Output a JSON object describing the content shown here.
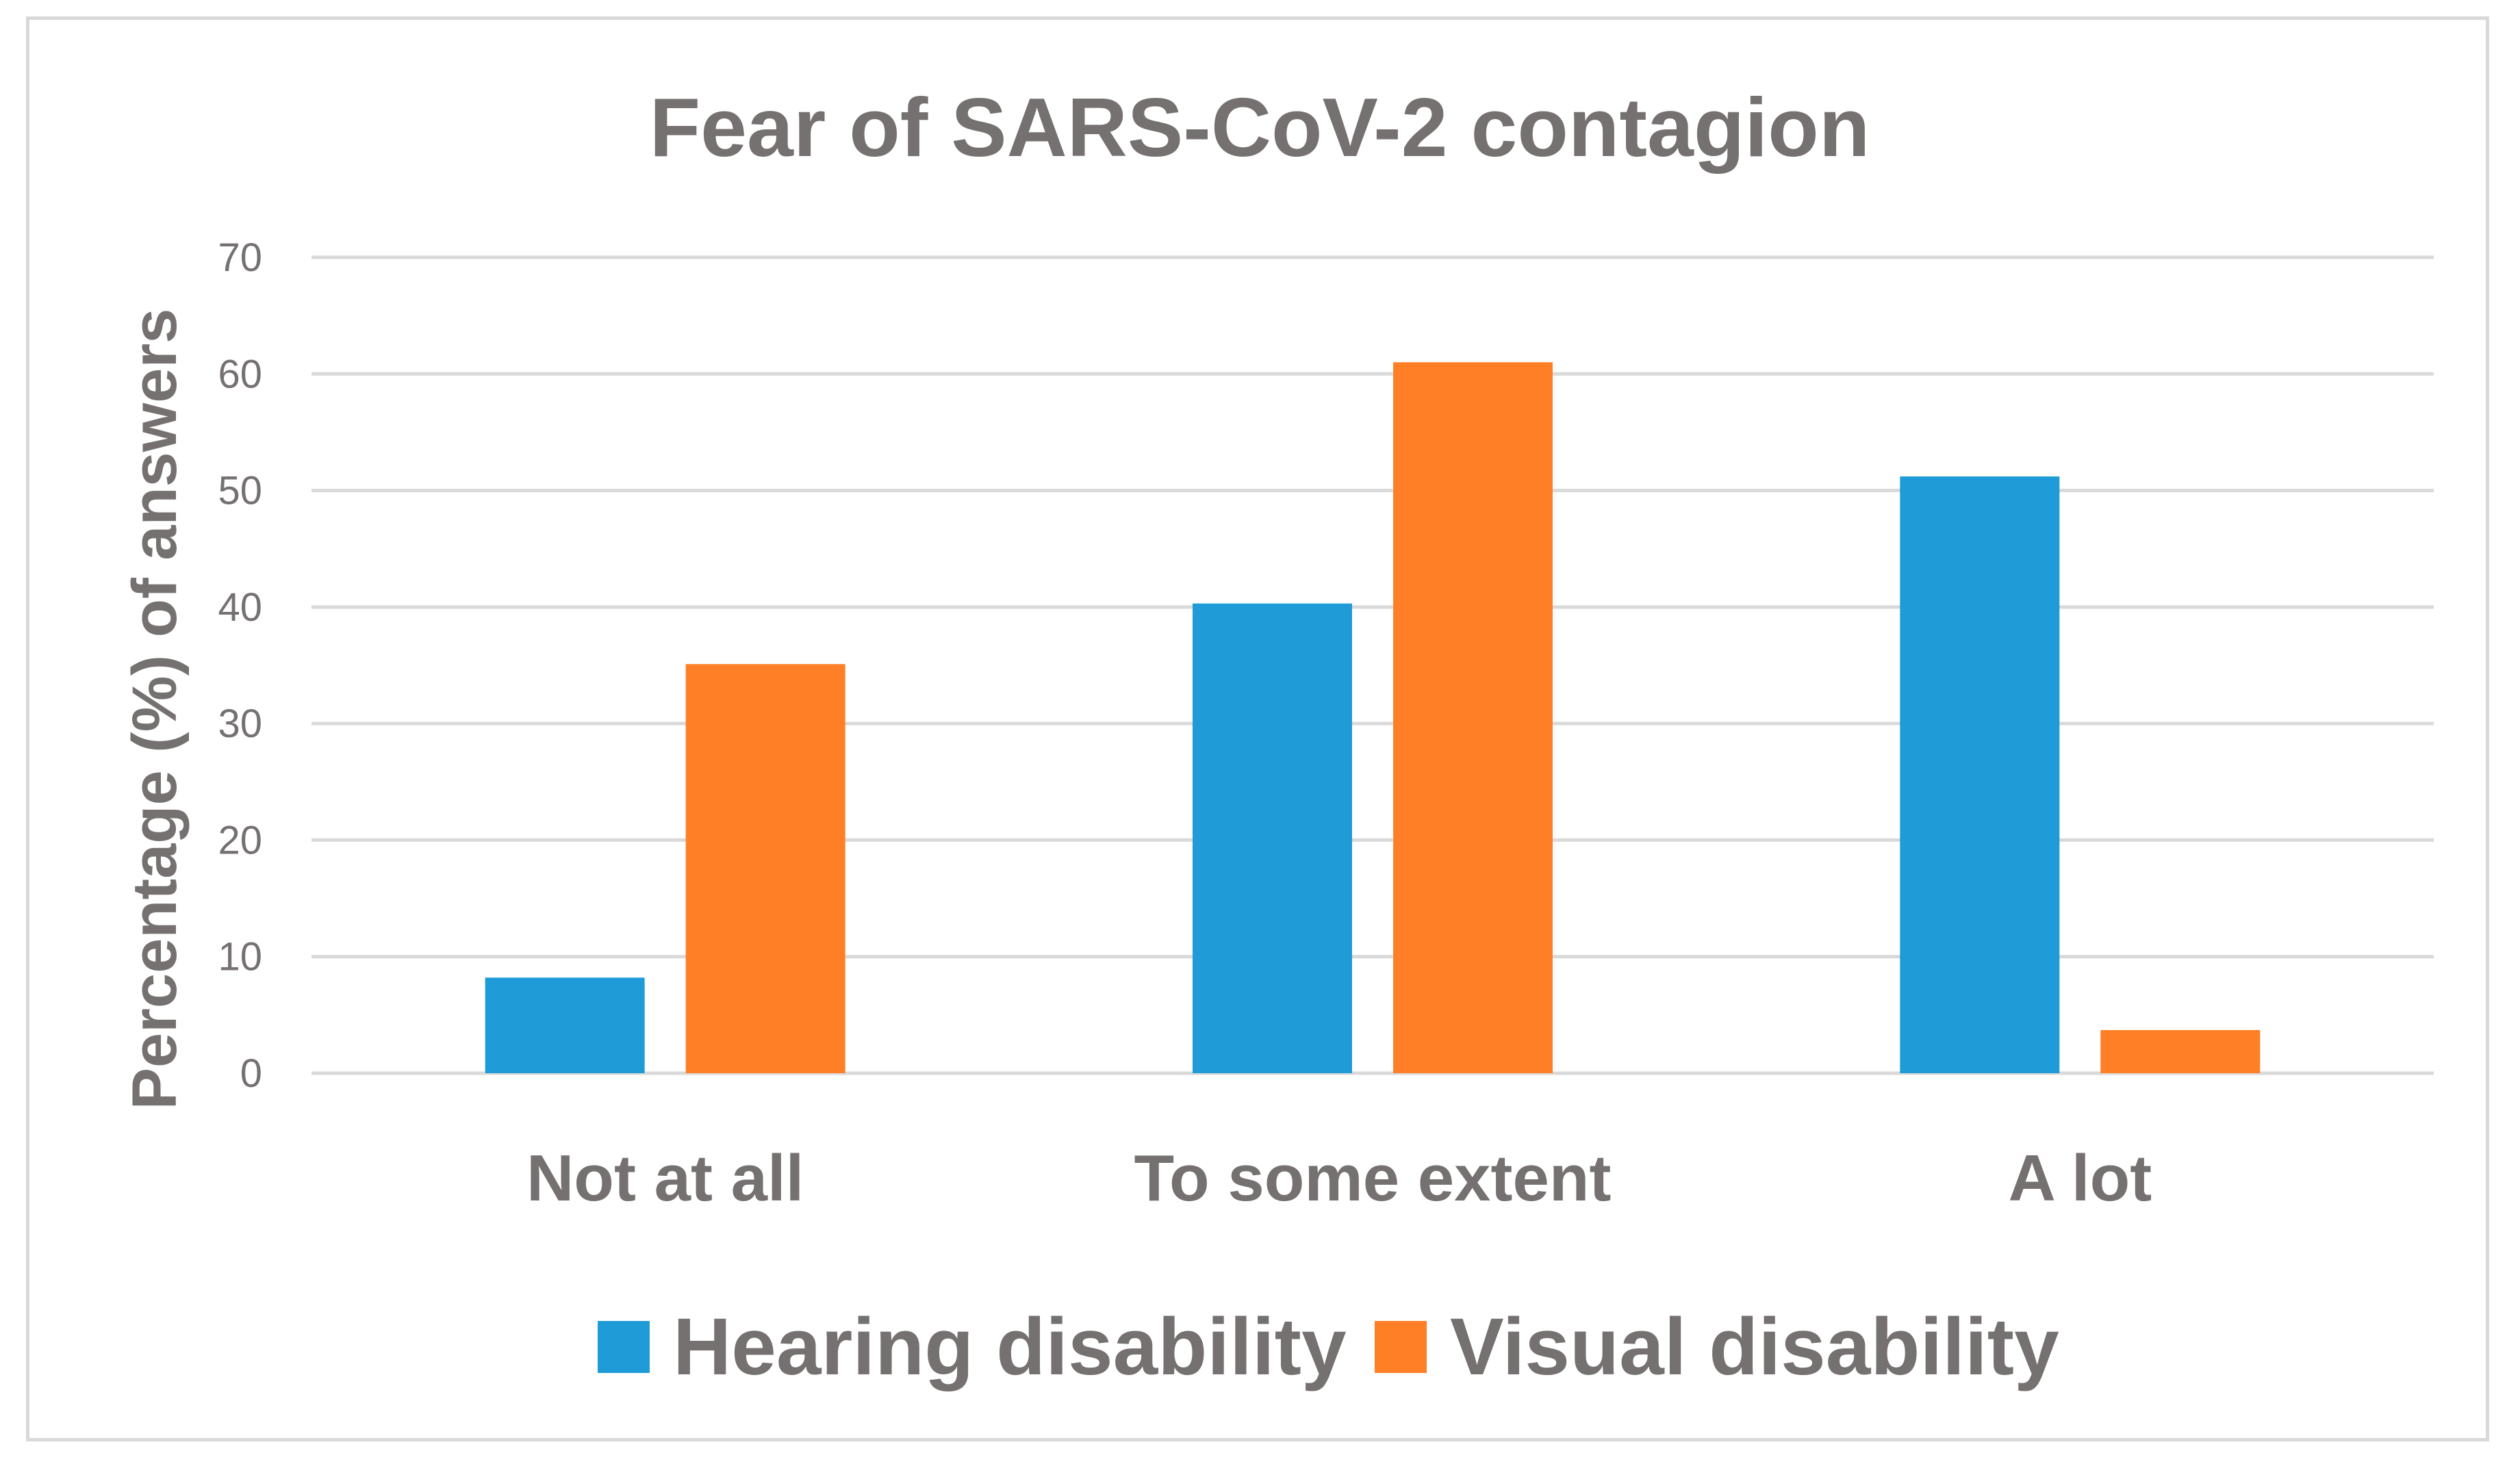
{
  "chart_data": {
    "type": "bar",
    "title": "Fear of SARS-CoV-2 contagion",
    "xlabel": "",
    "ylabel": "Percentage (%) of answers",
    "categories": [
      "Not at all",
      "To some extent",
      "A lot"
    ],
    "series": [
      {
        "name": "Hearing disability",
        "color": "#1f9bd7",
        "values": [
          8.2,
          40.3,
          51.2
        ]
      },
      {
        "name": "Visual disability",
        "color": "#ff7f27",
        "values": [
          35.1,
          61.0,
          3.7
        ]
      }
    ],
    "ylim": [
      0,
      70
    ],
    "yticks": [
      0,
      10,
      20,
      30,
      40,
      50,
      60,
      70
    ],
    "grid": true,
    "legend_position": "bottom"
  }
}
